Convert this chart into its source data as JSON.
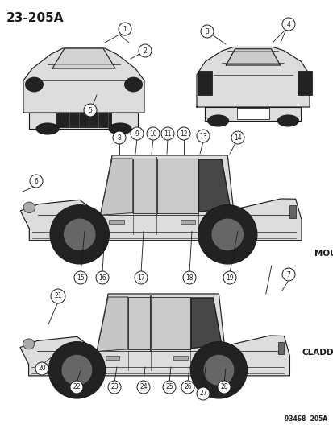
{
  "title": "23-205A",
  "footer_code": "93468  205A",
  "moulding_label": "MOULDING",
  "cladding_label": "CLADDING",
  "bg_color": "#ffffff",
  "line_color": "#1a1a1a",
  "gray_dark": "#222222",
  "gray_mid": "#666666",
  "gray_light": "#aaaaaa",
  "gray_lighter": "#dddddd",
  "fig_width": 4.14,
  "fig_height": 5.33,
  "dpi": 100
}
